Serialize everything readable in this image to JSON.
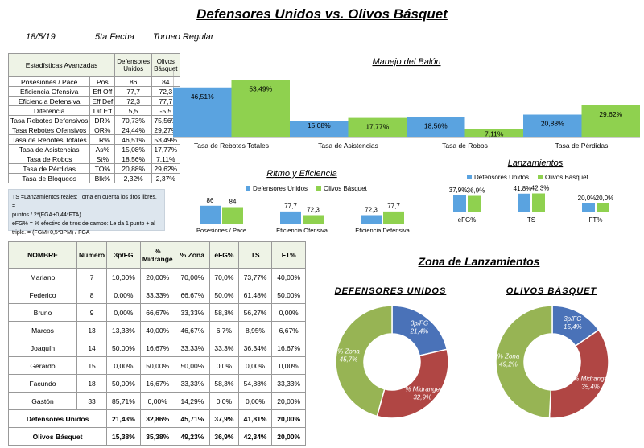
{
  "header": {
    "title": "Defensores Unidos vs. Olivos Básquet",
    "date": "18/5/19",
    "round": "5ta Fecha",
    "tournament": "Torneo Regular"
  },
  "colors": {
    "defensores": "#5aa3e0",
    "olivos": "#8fd14f",
    "pie_3p": "#4a72b8",
    "pie_mid": "#b04644",
    "pie_zona": "#97b454"
  },
  "advanced": {
    "header": [
      "Estadísticas Avanzadas",
      "",
      "Defensores Unidos",
      "Olivos Básquet"
    ],
    "rows": [
      [
        "Posesiones / Pace",
        "Pos",
        "86",
        "84"
      ],
      [
        "Eficiencia Ofensiva",
        "Eff Off",
        "77,7",
        "72,3"
      ],
      [
        "Eficiencia Defensiva",
        "Eff Def",
        "72,3",
        "77,7"
      ],
      [
        "Diferencia",
        "Dif Eff",
        "5,5",
        "-5,5"
      ],
      [
        "Tasa Rebotes Defensivos",
        "DR%",
        "70,73%",
        "75,56%"
      ],
      [
        "Tasa Rebotes Ofensivos",
        "OR%",
        "24,44%",
        "29,27%"
      ],
      [
        "Tasa de Rebotes Totales",
        "TR%",
        "46,51%",
        "53,49%"
      ],
      [
        "Tasa de Asistencias",
        "As%",
        "15,08%",
        "17,77%"
      ],
      [
        "Tasa de Robos",
        "St%",
        "18,56%",
        "7,11%"
      ],
      [
        "Tasa de Pérdidas",
        "TO%",
        "20,88%",
        "29,62%"
      ],
      [
        "Tasa de Bloqueos",
        "Blk%",
        "2,32%",
        "2,37%"
      ]
    ]
  },
  "notes": [
    "TS =Lanzamientos reales: Toma en cuenta los tiros libres. =",
    "puntos / 2*(FGA+0,44*FTA)",
    "eFG% = % efectivo de tiros de campo: Le da 1 punto + al",
    "triple. = (FGM+0,5*3PM) / FGA"
  ],
  "players": {
    "header": [
      "NOMBRE",
      "Número",
      "3p/FG",
      "% Midrange",
      "% Zona",
      "eFG%",
      "TS",
      "FT%"
    ],
    "rows": [
      [
        "Mariano",
        "7",
        "10,00%",
        "20,00%",
        "70,00%",
        "70,0%",
        "73,77%",
        "40,00%"
      ],
      [
        "Federico",
        "8",
        "0,00%",
        "33,33%",
        "66,67%",
        "50,0%",
        "61,48%",
        "50,00%"
      ],
      [
        "Bruno",
        "9",
        "0,00%",
        "66,67%",
        "33,33%",
        "58,3%",
        "56,27%",
        "0,00%"
      ],
      [
        "Marcos",
        "13",
        "13,33%",
        "40,00%",
        "46,67%",
        "6,7%",
        "8,95%",
        "6,67%"
      ],
      [
        "Joaquín",
        "14",
        "50,00%",
        "16,67%",
        "33,33%",
        "33,3%",
        "36,34%",
        "16,67%"
      ],
      [
        "Gerardo",
        "15",
        "0,00%",
        "50,00%",
        "50,00%",
        "0,0%",
        "0,00%",
        "0,00%"
      ],
      [
        "Facundo",
        "18",
        "50,00%",
        "16,67%",
        "33,33%",
        "58,3%",
        "54,88%",
        "33,33%"
      ],
      [
        "Gastón",
        "33",
        "85,71%",
        "0,00%",
        "14,29%",
        "0,0%",
        "0,00%",
        "20,00%"
      ]
    ],
    "team_rows": [
      [
        "Defensores Unidos",
        "21,43%",
        "32,86%",
        "45,71%",
        "37,9%",
        "41,81%",
        "20,00%"
      ],
      [
        "Olivos Básquet",
        "15,38%",
        "35,38%",
        "49,23%",
        "36,9%",
        "42,34%",
        "20,00%"
      ]
    ]
  },
  "chart_data": [
    {
      "type": "bar",
      "title": "Manejo del Balón",
      "categories": [
        "Tasa de Rebotes Totales",
        "Tasa de Asistencias",
        "Tasa de Robos",
        "Tasa de Pérdidas"
      ],
      "series": [
        {
          "name": "Defensores Unidos",
          "values": [
            46.51,
            15.08,
            18.56,
            20.88
          ],
          "labels": [
            "46,51%",
            "15,08%",
            "18,56%",
            "20,88%"
          ]
        },
        {
          "name": "Olivos Básquet",
          "values": [
            53.49,
            17.77,
            7.11,
            29.62
          ],
          "labels": [
            "53,49%",
            "17,77%",
            "7,11%",
            "29,62%"
          ]
        }
      ],
      "ylim": [
        0,
        60
      ]
    },
    {
      "type": "bar",
      "title": "Ritmo y Eficiencia",
      "legend": [
        "Defensores Unidos",
        "Olivos Básquet"
      ],
      "categories": [
        "Posesiones / Pace",
        "Eficiencia Ofensiva",
        "Eficiencia Defensiva"
      ],
      "series": [
        {
          "name": "Defensores Unidos",
          "values": [
            86,
            77.7,
            72.3
          ],
          "labels": [
            "86",
            "77,7",
            "72,3"
          ]
        },
        {
          "name": "Olivos Básquet",
          "values": [
            84,
            72.3,
            77.7
          ],
          "labels": [
            "84",
            "72,3",
            "77,7"
          ]
        }
      ],
      "ylim": [
        60,
        95
      ]
    },
    {
      "type": "bar",
      "title": "Lanzamientos",
      "legend": [
        "Defensores Unidos",
        "Olivos Básquet"
      ],
      "categories": [
        "eFG%",
        "TS",
        "FT%"
      ],
      "series": [
        {
          "name": "Defensores Unidos",
          "values": [
            37.9,
            41.8,
            20.0
          ],
          "labels": [
            "37,9%",
            "41,8%",
            "20,0%"
          ]
        },
        {
          "name": "Olivos Básquet",
          "values": [
            36.9,
            42.3,
            20.0
          ],
          "labels": [
            "36,9%",
            "42,3%",
            "20,0%"
          ]
        }
      ],
      "ylim": [
        0,
        45
      ]
    },
    {
      "type": "pie",
      "section_title": "Zona de Lanzamientos",
      "title": "DEFENSORES UNIDOS",
      "categories": [
        "3p/FG",
        "% Midrange",
        "% Zona"
      ],
      "values": [
        21.4,
        32.9,
        45.7
      ],
      "labels": [
        "21,4%",
        "32,9%",
        "45,7%"
      ]
    },
    {
      "type": "pie",
      "title": "OLIVOS BÁSQUET",
      "categories": [
        "3p/FG",
        "% Midrange",
        "% Zona"
      ],
      "values": [
        15.4,
        35.4,
        49.2
      ],
      "labels": [
        "15,4%",
        "35,4%",
        "49,2%"
      ]
    }
  ]
}
